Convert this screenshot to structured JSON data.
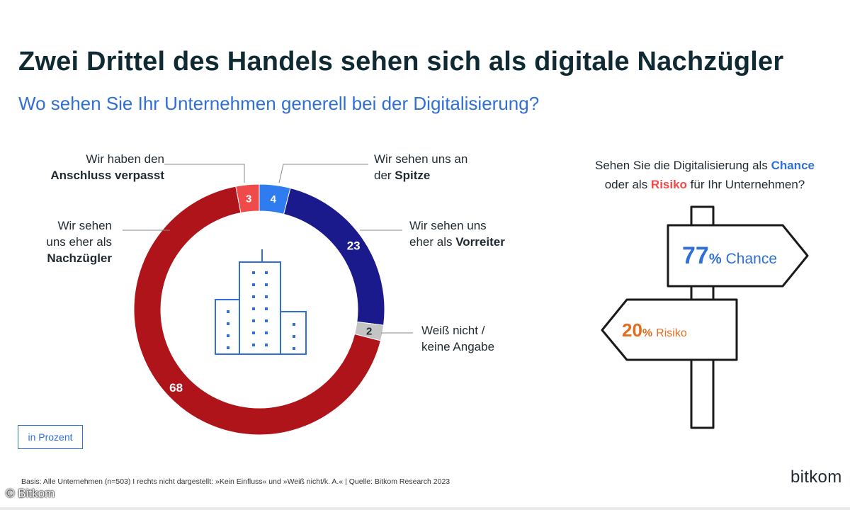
{
  "title": "Zwei Drittel des Handels sehen sich als digitale Nachzügler",
  "subtitle": "Wo sehen Sie Ihr Unternehmen generell bei der Digitalisierung?",
  "labels": {
    "nachzuegler": {
      "line1": "Wir sehen",
      "line2": "uns eher als",
      "bold": "Nachzügler"
    },
    "anschluss": {
      "line1": "Wir haben den",
      "bold": "Anschluss verpasst"
    },
    "spitze": {
      "line1": "Wir sehen uns an",
      "line2": "der ",
      "bold": "Spitze"
    },
    "vorreiter": {
      "line1": "Wir sehen uns",
      "line2": "eher als ",
      "bold": "Vorreiter"
    },
    "weiss_nicht": {
      "line1": "Weiß nicht /",
      "line2": "keine Angabe"
    }
  },
  "right_panel": {
    "question_pre": "Sehen Sie die Digitalisierung als ",
    "chance_word": "Chance",
    "question_mid": "oder als ",
    "risiko_word": "Risiko",
    "question_post": " für Ihr Unternehmen?",
    "chance_value": "77",
    "chance_pct": "%",
    "chance_label": "Chance",
    "risiko_value": "20",
    "risiko_pct": "%",
    "risiko_label": "Risiko"
  },
  "unit_label": "in Prozent",
  "footnote": "Basis: Alle Unternehmen (n=503) I rechts nicht dargestellt: »Kein Einfluss« und »Weiß nicht/k. A.« | Quelle: Bitkom Research 2023",
  "copyright": "© Bitkom",
  "logo": "bitkom",
  "colors": {
    "spitze": "#2f7bf0",
    "vorreiter": "#1b1a8c",
    "weiss_nicht": "#c4c4c4",
    "nachzuegler": "#b0141b",
    "anschluss": "#ef4b4b",
    "chance": "#2f6fd6",
    "risiko": "#e46d1e",
    "building": "#2f6fd6"
  },
  "chart_data": {
    "type": "pie",
    "subtype": "donut",
    "title": "Wo sehen Sie Ihr Unternehmen generell bei der Digitalisierung?",
    "unit": "in Prozent",
    "slices": [
      {
        "label": "Wir sehen uns an der Spitze",
        "value": 4,
        "color": "#2f7bf0"
      },
      {
        "label": "Wir sehen uns eher als Vorreiter",
        "value": 23,
        "color": "#1b1a8c"
      },
      {
        "label": "Weiß nicht / keine Angabe",
        "value": 2,
        "color": "#c4c4c4"
      },
      {
        "label": "Wir sehen uns eher als Nachzügler",
        "value": 68,
        "color": "#b0141b"
      },
      {
        "label": "Wir haben den Anschluss verpasst",
        "value": 3,
        "color": "#ef4b4b"
      }
    ]
  }
}
